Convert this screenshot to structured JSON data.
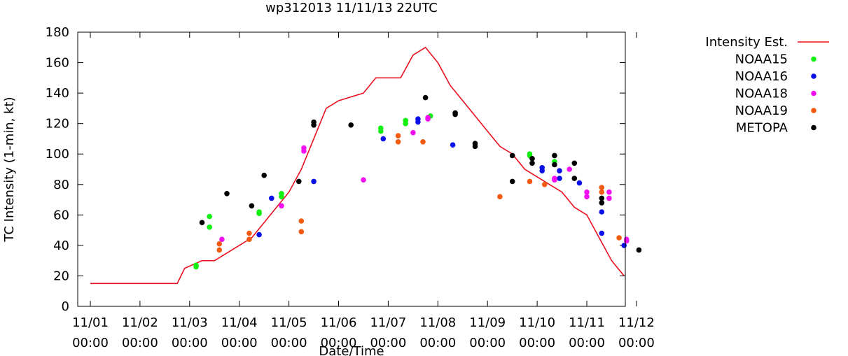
{
  "chart_data": {
    "type": "scatter",
    "title": "wp312013 11/11/13 22UTC",
    "xlabel": "Date/Time",
    "ylabel": "TC Intensity (1-min, kt)",
    "xlim": [
      0,
      11
    ],
    "ylim": [
      0,
      180
    ],
    "yticks": [
      0,
      20,
      40,
      60,
      80,
      100,
      120,
      140,
      160,
      180
    ],
    "xticks": [
      {
        "x": 0,
        "date": "11/01",
        "time": "00:00"
      },
      {
        "x": 1,
        "date": "11/02",
        "time": "00:00"
      },
      {
        "x": 2,
        "date": "11/03",
        "time": "00:00"
      },
      {
        "x": 3,
        "date": "11/04",
        "time": "00:00"
      },
      {
        "x": 4,
        "date": "11/05",
        "time": "00:00"
      },
      {
        "x": 5,
        "date": "11/06",
        "time": "00:00"
      },
      {
        "x": 6,
        "date": "11/07",
        "time": "00:00"
      },
      {
        "x": 7,
        "date": "11/08",
        "time": "00:00"
      },
      {
        "x": 8,
        "date": "11/09",
        "time": "00:00"
      },
      {
        "x": 9,
        "date": "11/10",
        "time": "00:00"
      },
      {
        "x": 10,
        "date": "11/11",
        "time": "00:00"
      },
      {
        "x": 11,
        "date": "11/12",
        "time": "00:00"
      }
    ],
    "x_units": "days since 11/01 00:00",
    "legend_position": "right",
    "series": [
      {
        "name": "Intensity Est.",
        "style": "line",
        "color": "#e8101f",
        "x": [
          0.0,
          1.75,
          1.9,
          2.25,
          2.5,
          2.75,
          3.0,
          3.25,
          3.5,
          3.75,
          4.0,
          4.25,
          4.5,
          4.75,
          5.0,
          5.5,
          5.75,
          6.0,
          6.25,
          6.5,
          6.75,
          7.0,
          7.25,
          7.5,
          7.75,
          8.0,
          8.25,
          8.5,
          8.75,
          9.0,
          9.25,
          9.5,
          9.75,
          10.0,
          10.25,
          10.5,
          10.75
        ],
        "y": [
          15,
          15,
          25,
          30,
          30,
          35,
          40,
          45,
          55,
          65,
          75,
          90,
          110,
          130,
          135,
          140,
          150,
          150,
          150,
          165,
          170,
          160,
          145,
          135,
          125,
          115,
          105,
          100,
          90,
          85,
          80,
          75,
          65,
          60,
          45,
          30,
          20
        ]
      },
      {
        "name": "NOAA15",
        "style": "points",
        "color": "#11f011",
        "points": [
          [
            2.13,
            27
          ],
          [
            2.13,
            26
          ],
          [
            2.4,
            59
          ],
          [
            2.4,
            52
          ],
          [
            3.4,
            62
          ],
          [
            3.4,
            61
          ],
          [
            3.85,
            74
          ],
          [
            3.85,
            72
          ],
          [
            5.85,
            117
          ],
          [
            5.85,
            115
          ],
          [
            6.35,
            122
          ],
          [
            6.35,
            120
          ],
          [
            6.85,
            125
          ],
          [
            8.85,
            100
          ],
          [
            8.85,
            99
          ],
          [
            9.35,
            95
          ]
        ]
      },
      {
        "name": "NOAA16",
        "style": "points",
        "color": "#0a10e8",
        "points": [
          [
            3.4,
            47
          ],
          [
            3.65,
            71
          ],
          [
            4.5,
            82
          ],
          [
            5.9,
            110
          ],
          [
            6.6,
            123
          ],
          [
            6.6,
            121
          ],
          [
            7.3,
            106
          ],
          [
            9.1,
            91
          ],
          [
            9.1,
            89
          ],
          [
            9.45,
            89
          ],
          [
            9.45,
            84
          ],
          [
            9.85,
            81
          ],
          [
            10.3,
            62
          ],
          [
            10.3,
            48
          ],
          [
            10.75,
            40
          ]
        ]
      },
      {
        "name": "NOAA18",
        "style": "points",
        "color": "#f010f0",
        "points": [
          [
            2.65,
            44
          ],
          [
            3.85,
            66
          ],
          [
            4.3,
            104
          ],
          [
            4.3,
            102
          ],
          [
            5.5,
            83
          ],
          [
            6.5,
            114
          ],
          [
            6.8,
            124
          ],
          [
            6.8,
            123
          ],
          [
            9.35,
            84
          ],
          [
            9.35,
            83
          ],
          [
            9.65,
            90
          ],
          [
            10.0,
            75
          ],
          [
            10.0,
            72
          ],
          [
            10.45,
            75
          ],
          [
            10.45,
            71
          ],
          [
            10.8,
            44
          ],
          [
            10.8,
            43
          ]
        ]
      },
      {
        "name": "NOAA19",
        "style": "points",
        "color": "#f25a12",
        "points": [
          [
            2.6,
            41
          ],
          [
            2.6,
            37
          ],
          [
            3.2,
            48
          ],
          [
            3.2,
            44
          ],
          [
            4.25,
            56
          ],
          [
            4.25,
            49
          ],
          [
            6.2,
            112
          ],
          [
            6.2,
            108
          ],
          [
            6.7,
            108
          ],
          [
            8.25,
            72
          ],
          [
            8.85,
            82
          ],
          [
            9.15,
            80
          ],
          [
            10.3,
            78
          ],
          [
            10.3,
            75
          ],
          [
            10.65,
            45
          ]
        ]
      },
      {
        "name": "METOPA",
        "style": "points",
        "color": "#000000",
        "points": [
          [
            2.25,
            55
          ],
          [
            2.75,
            74
          ],
          [
            3.25,
            66
          ],
          [
            3.5,
            86
          ],
          [
            4.2,
            82
          ],
          [
            4.5,
            121
          ],
          [
            4.5,
            119
          ],
          [
            5.25,
            119
          ],
          [
            6.75,
            137
          ],
          [
            7.35,
            127
          ],
          [
            7.35,
            126
          ],
          [
            7.75,
            107
          ],
          [
            7.75,
            105
          ],
          [
            8.5,
            99
          ],
          [
            8.5,
            82
          ],
          [
            8.9,
            97
          ],
          [
            8.9,
            94
          ],
          [
            9.35,
            99
          ],
          [
            9.35,
            93
          ],
          [
            9.75,
            94
          ],
          [
            9.75,
            84
          ],
          [
            10.3,
            71
          ],
          [
            10.3,
            68
          ],
          [
            11.05,
            37
          ]
        ]
      }
    ]
  }
}
